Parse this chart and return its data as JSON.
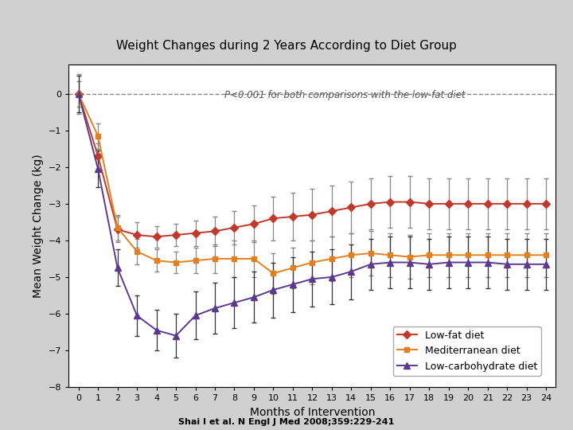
{
  "title": "Weight Changes during 2 Years According to Diet Group",
  "xlabel": "Months of Intervention",
  "ylabel": "Mean Weight Change (kg)",
  "citation": "Shai I et al. N Engl J Med 2008;359:229-241",
  "xlim": [
    -0.5,
    24.5
  ],
  "ylim": [
    -8,
    0.8
  ],
  "yticks": [
    0,
    -1,
    -2,
    -3,
    -4,
    -5,
    -6,
    -7,
    -8
  ],
  "xticks": [
    0,
    1,
    2,
    3,
    4,
    5,
    6,
    7,
    8,
    9,
    10,
    11,
    12,
    13,
    14,
    15,
    16,
    17,
    18,
    19,
    20,
    21,
    22,
    23,
    24
  ],
  "background_outer": "#d0d0d0",
  "background_inner": "#ffffff",
  "low_fat_color": "#c0392b",
  "med_color": "#e08020",
  "low_carb_color": "#5b3a8e",
  "error_color": "#555555",
  "months": [
    0,
    1,
    2,
    3,
    4,
    5,
    6,
    7,
    8,
    9,
    10,
    11,
    12,
    13,
    14,
    15,
    16,
    17,
    18,
    19,
    20,
    21,
    22,
    23,
    24
  ],
  "low_fat": [
    0,
    -1.7,
    -3.7,
    -3.85,
    -3.9,
    -3.85,
    -3.8,
    -3.75,
    -3.65,
    -3.55,
    -3.4,
    -3.35,
    -3.3,
    -3.2,
    -3.1,
    -3.0,
    -2.95,
    -2.95,
    -3.0,
    -3.0,
    -3.0,
    -3.0,
    -3.0,
    -3.0,
    -3.0
  ],
  "low_fat_err": [
    0.55,
    0.35,
    0.35,
    0.35,
    0.3,
    0.3,
    0.35,
    0.4,
    0.45,
    0.5,
    0.6,
    0.65,
    0.7,
    0.7,
    0.7,
    0.7,
    0.7,
    0.7,
    0.7,
    0.7,
    0.7,
    0.7,
    0.7,
    0.7,
    0.7
  ],
  "med": [
    0,
    -1.15,
    -3.65,
    -4.3,
    -4.55,
    -4.6,
    -4.55,
    -4.5,
    -4.5,
    -4.5,
    -4.9,
    -4.75,
    -4.6,
    -4.5,
    -4.4,
    -4.35,
    -4.4,
    -4.45,
    -4.4,
    -4.4,
    -4.4,
    -4.4,
    -4.4,
    -4.4,
    -4.4
  ],
  "med_err": [
    0.35,
    0.35,
    0.35,
    0.35,
    0.3,
    0.3,
    0.35,
    0.4,
    0.5,
    0.5,
    0.55,
    0.55,
    0.6,
    0.6,
    0.6,
    0.6,
    0.6,
    0.6,
    0.6,
    0.6,
    0.6,
    0.6,
    0.6,
    0.6,
    0.6
  ],
  "low_carb": [
    0,
    -2.05,
    -4.75,
    -6.05,
    -6.45,
    -6.6,
    -6.05,
    -5.85,
    -5.7,
    -5.55,
    -5.35,
    -5.2,
    -5.05,
    -5.0,
    -4.85,
    -4.65,
    -4.6,
    -4.6,
    -4.65,
    -4.6,
    -4.6,
    -4.6,
    -4.65,
    -4.65,
    -4.65
  ],
  "low_carb_err": [
    0.5,
    0.5,
    0.5,
    0.55,
    0.55,
    0.6,
    0.65,
    0.7,
    0.7,
    0.7,
    0.75,
    0.75,
    0.75,
    0.75,
    0.75,
    0.7,
    0.7,
    0.7,
    0.7,
    0.7,
    0.7,
    0.7,
    0.7,
    0.7,
    0.7
  ],
  "legend_labels": [
    "Low-fat diet",
    "Mediterranean diet",
    "Low-carbohydrate diet"
  ],
  "annot_text": "P<0.001 for both comparisons with the low-fat diet"
}
